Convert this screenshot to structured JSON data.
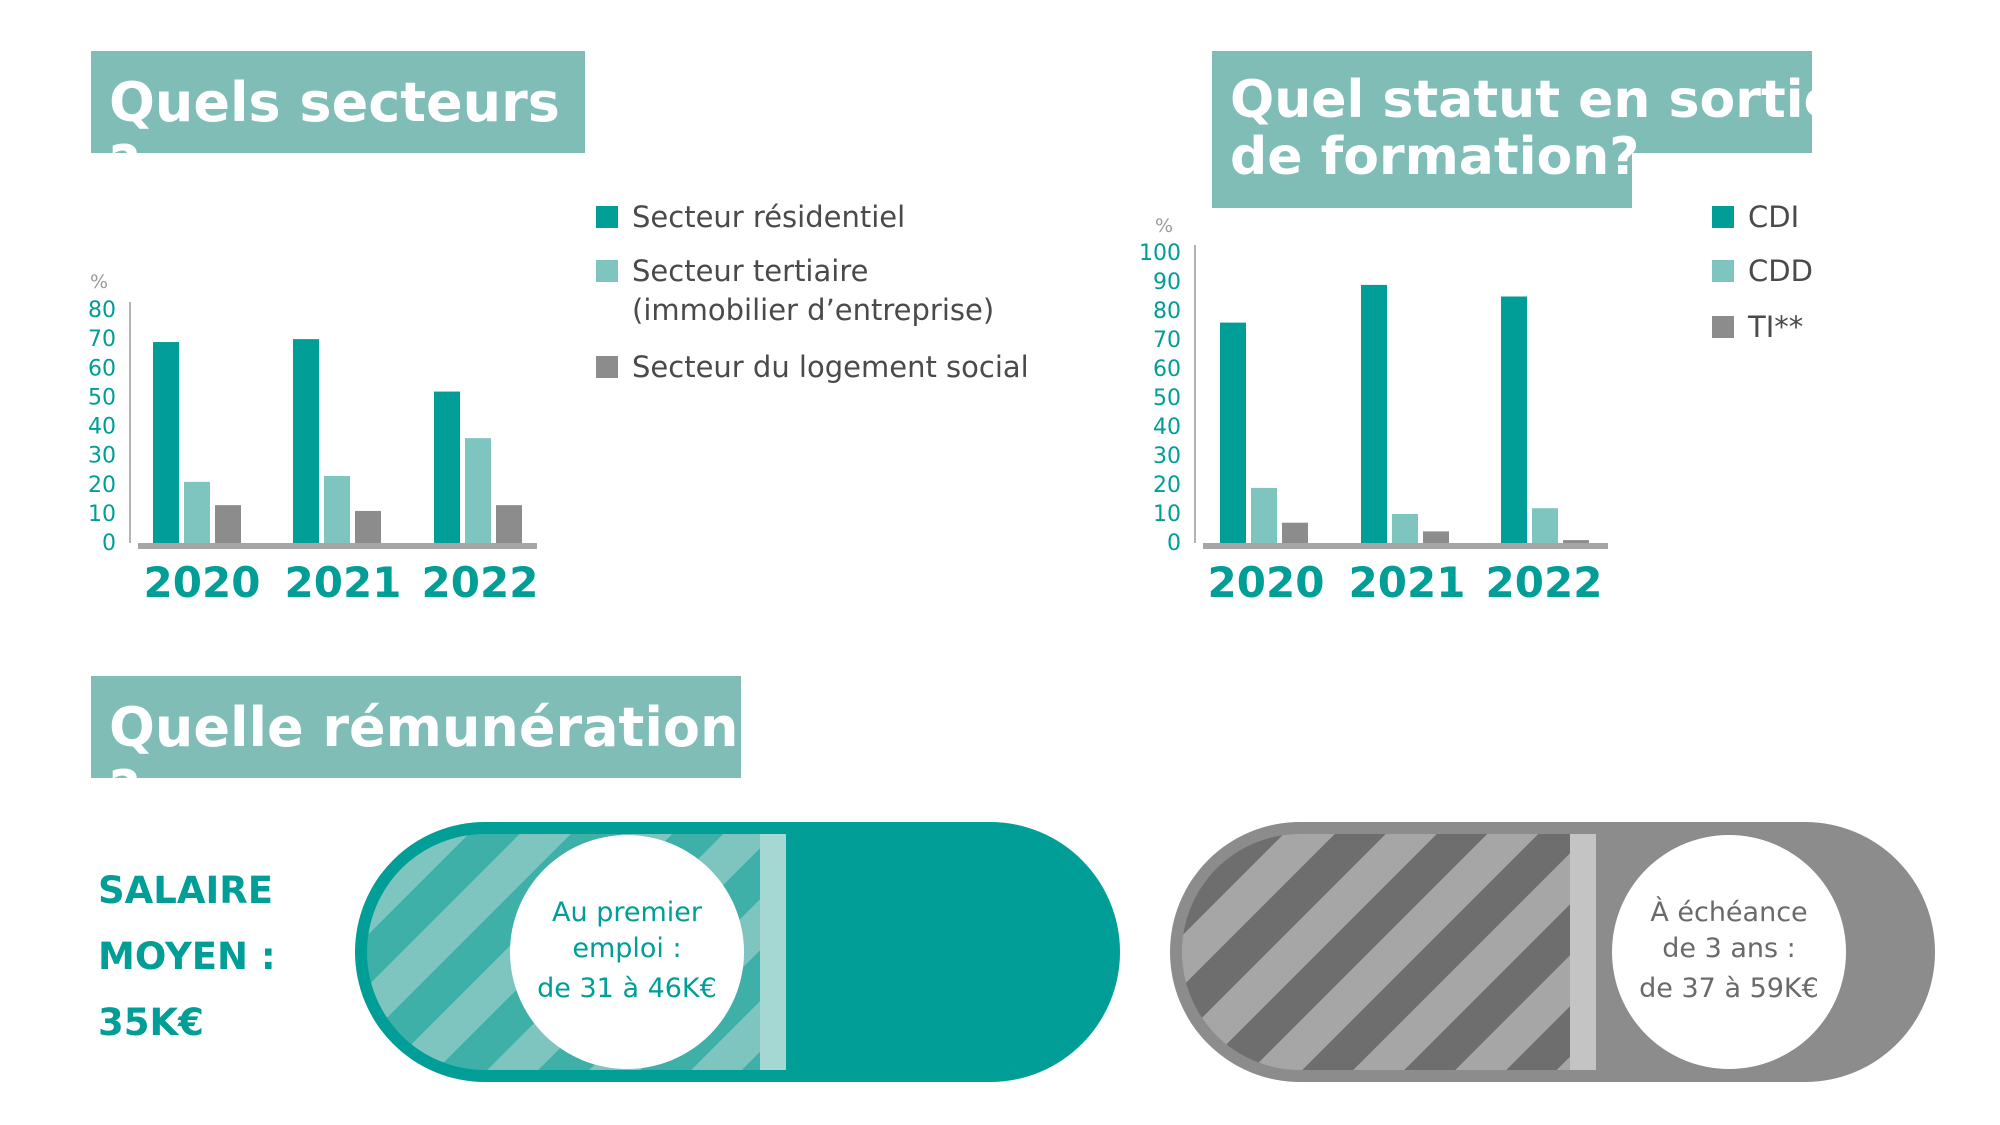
{
  "colors": {
    "teal": "#009e97",
    "light_teal": "#7fc5bf",
    "gray": "#8c8c8c",
    "title_bg": "#7fbdb6"
  },
  "sectors": {
    "title": "Quels secteurs ?",
    "legend": [
      {
        "label": "Secteur résidentiel",
        "color": "#009e97"
      },
      {
        "label": "Secteur tertiaire\n(immobilier d’entreprise)",
        "color": "#7fc5bf"
      },
      {
        "label": "Secteur du logement social",
        "color": "#8c8c8c"
      }
    ]
  },
  "status": {
    "title": "Quel statut en sortie\nde formation?",
    "legend": [
      {
        "label": "CDI",
        "color": "#009e97"
      },
      {
        "label": "CDD",
        "color": "#7fc5bf"
      },
      {
        "label": "TI**",
        "color": "#8c8c8c"
      }
    ]
  },
  "chart_data": [
    {
      "type": "bar",
      "title": "Quels secteurs ?",
      "categories": [
        "2020",
        "2021",
        "2022"
      ],
      "series": [
        {
          "name": "Secteur résidentiel",
          "values": [
            69,
            70,
            52
          ]
        },
        {
          "name": "Secteur tertiaire (immobilier d’entreprise)",
          "values": [
            21,
            23,
            36
          ]
        },
        {
          "name": "Secteur du logement social",
          "values": [
            13,
            11,
            13
          ]
        }
      ],
      "ylabel": "%",
      "ylim": [
        0,
        80
      ],
      "yticks": [
        "0",
        "10",
        "20",
        "30",
        "40",
        "50",
        "60",
        "70",
        "80"
      ],
      "legend": "right"
    },
    {
      "type": "bar",
      "title": "Quel statut en sortie de formation?",
      "categories": [
        "2020",
        "2021",
        "2022"
      ],
      "series": [
        {
          "name": "CDI",
          "values": [
            76,
            89,
            85
          ]
        },
        {
          "name": "CDD",
          "values": [
            19,
            10,
            12
          ]
        },
        {
          "name": "TI**",
          "values": [
            7,
            4,
            1
          ]
        }
      ],
      "ylabel": "%",
      "ylim": [
        0,
        100
      ],
      "yticks": [
        "0",
        "10",
        "20",
        "30",
        "40",
        "50",
        "60",
        "70",
        "80",
        "90",
        "100"
      ],
      "legend": "right"
    }
  ],
  "pay": {
    "title": "Quelle rémunération ?",
    "salary_line1": "SALAIRE",
    "salary_line2": "MOYEN :",
    "salary_line3": "35K€",
    "first_job_line1": "Au premier",
    "first_job_line2": "emploi :",
    "first_job_line3": "de 31 à 46K€",
    "later_line1": "À échéance",
    "later_line2": "de 3 ans :",
    "later_line3": "de 37 à 59K€"
  }
}
